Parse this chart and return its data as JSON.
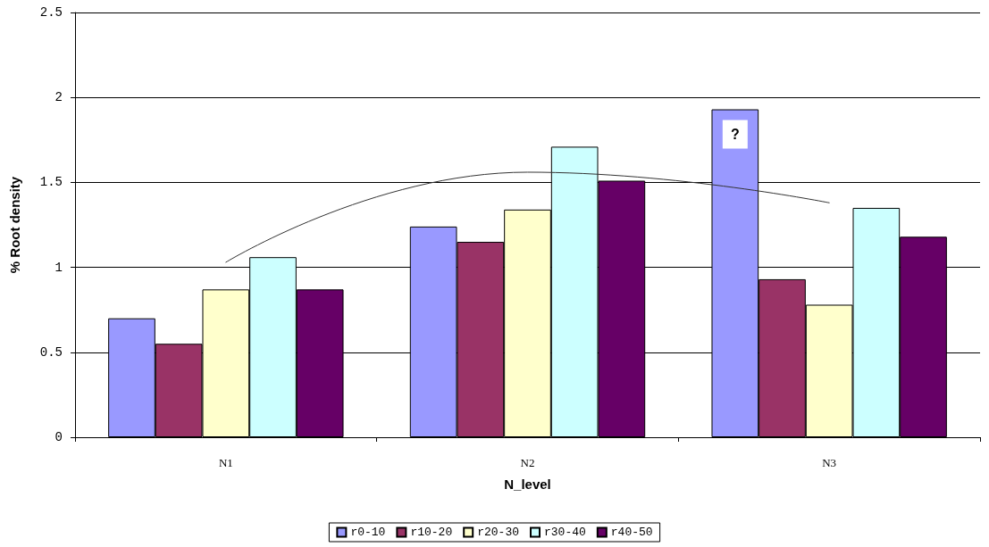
{
  "chart_data": {
    "type": "bar",
    "xlabel": "N_level",
    "ylabel": "% Root density",
    "categories": [
      "N1",
      "N2",
      "N3"
    ],
    "series": [
      {
        "name": "r0-10",
        "color": "#9999ff",
        "values": [
          0.7,
          1.24,
          1.93
        ]
      },
      {
        "name": "r10-20",
        "color": "#993366",
        "values": [
          0.55,
          1.15,
          0.93
        ]
      },
      {
        "name": "r20-30",
        "color": "#ffffcc",
        "values": [
          0.87,
          1.34,
          0.78
        ]
      },
      {
        "name": "r30-40",
        "color": "#ccffff",
        "values": [
          1.06,
          1.71,
          1.35
        ]
      },
      {
        "name": "r40-50",
        "color": "#660066",
        "values": [
          0.87,
          1.51,
          1.18
        ]
      },
      {
        "type": "line",
        "color": "#333333",
        "values": [
          1.03,
          1.56,
          1.38
        ]
      }
    ],
    "ylim": [
      0,
      2.5
    ],
    "yticks": [
      0,
      0.5,
      1,
      1.5,
      2,
      2.5
    ],
    "grid": "y",
    "legend": "bottom",
    "marker": "none",
    "annotations": [
      "?"
    ]
  }
}
